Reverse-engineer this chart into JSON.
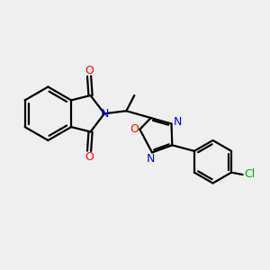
{
  "bg_color": "#efefef",
  "bond_color": "#000000",
  "N_color": "#0000ff",
  "O_color": "#ff0000",
  "Cl_color": "#00aa00",
  "line_width": 1.6,
  "figsize": [
    3.0,
    3.0
  ],
  "dpi": 100,
  "xlim": [
    0,
    10
  ],
  "ylim": [
    0,
    10
  ]
}
